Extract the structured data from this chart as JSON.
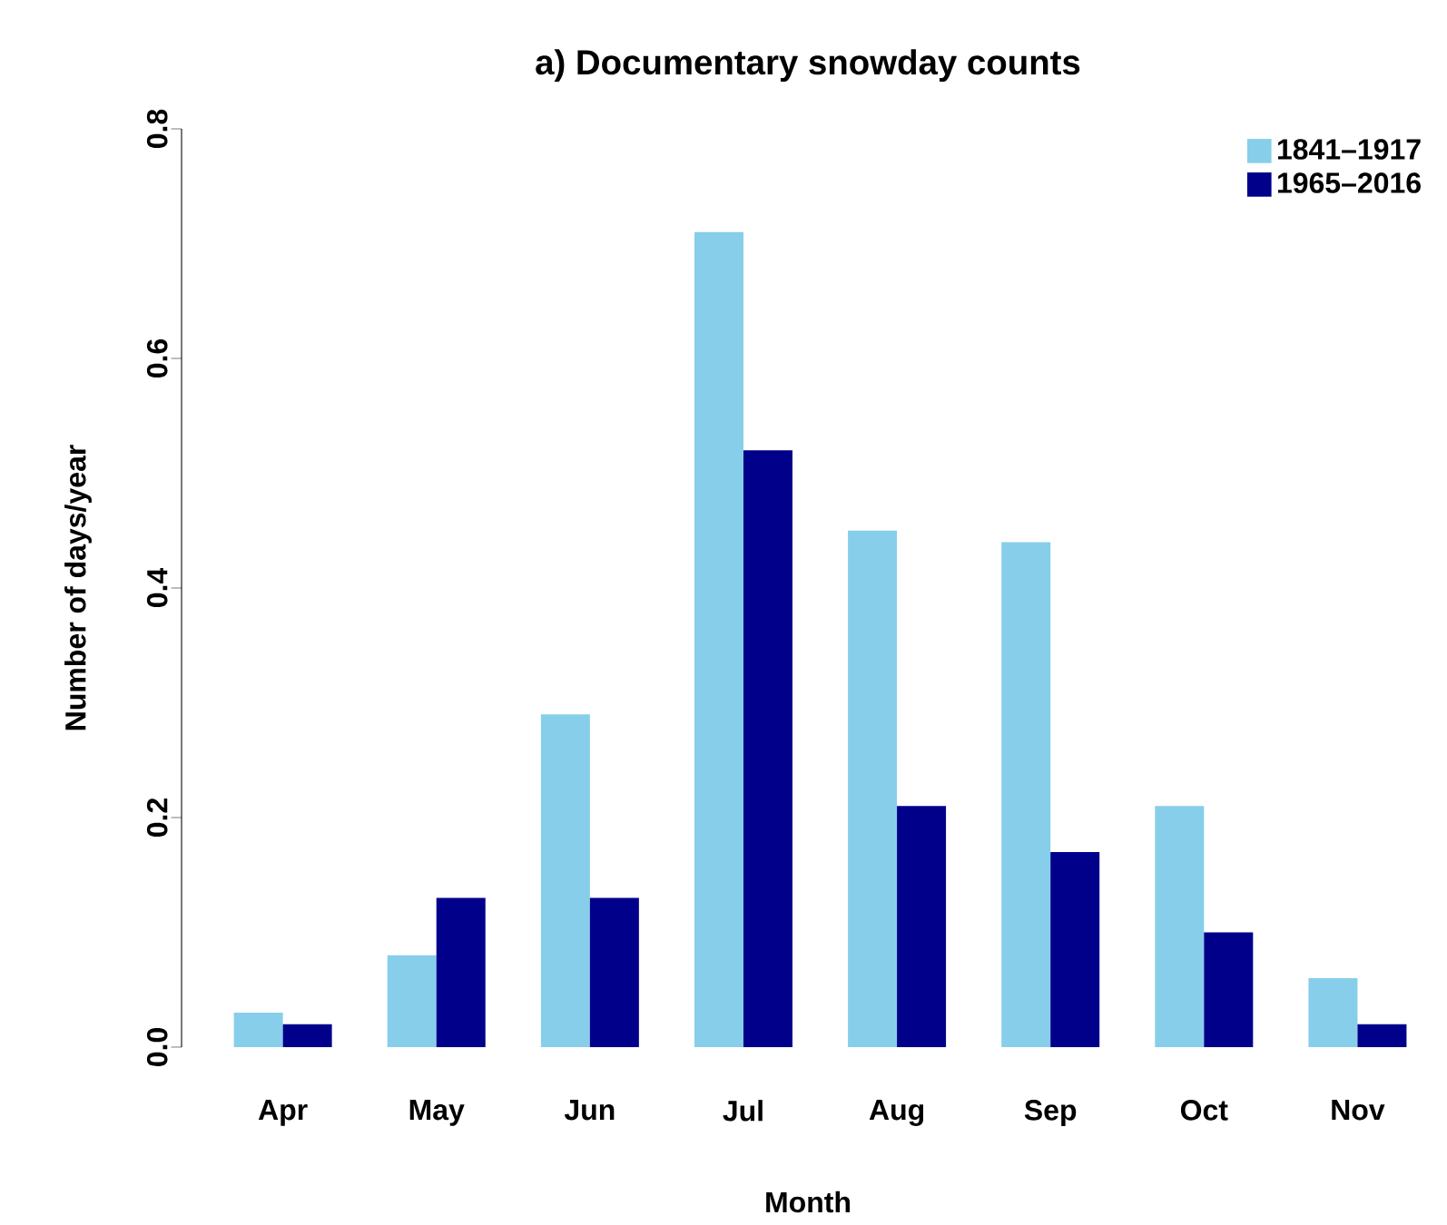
{
  "chart_data": {
    "type": "bar",
    "title": "a) Documentary snowday counts",
    "xlabel": "Month",
    "ylabel": "Number of days/year",
    "categories": [
      "Apr",
      "May",
      "Jun",
      "Jul",
      "Aug",
      "Sep",
      "Oct",
      "Nov"
    ],
    "series": [
      {
        "name": "1841–1917",
        "color": "#87ceeb",
        "values": [
          0.03,
          0.08,
          0.29,
          0.71,
          0.45,
          0.44,
          0.21,
          0.06
        ]
      },
      {
        "name": "1965–2016",
        "color": "#00008b",
        "values": [
          0.02,
          0.13,
          0.13,
          0.52,
          0.21,
          0.17,
          0.1,
          0.02
        ]
      }
    ],
    "ylim": [
      0,
      0.8
    ],
    "yticks": [
      {
        "value": 0,
        "label": "0.0"
      },
      0.2,
      0.4,
      0.6,
      0.8
    ],
    "legend": "top right"
  }
}
